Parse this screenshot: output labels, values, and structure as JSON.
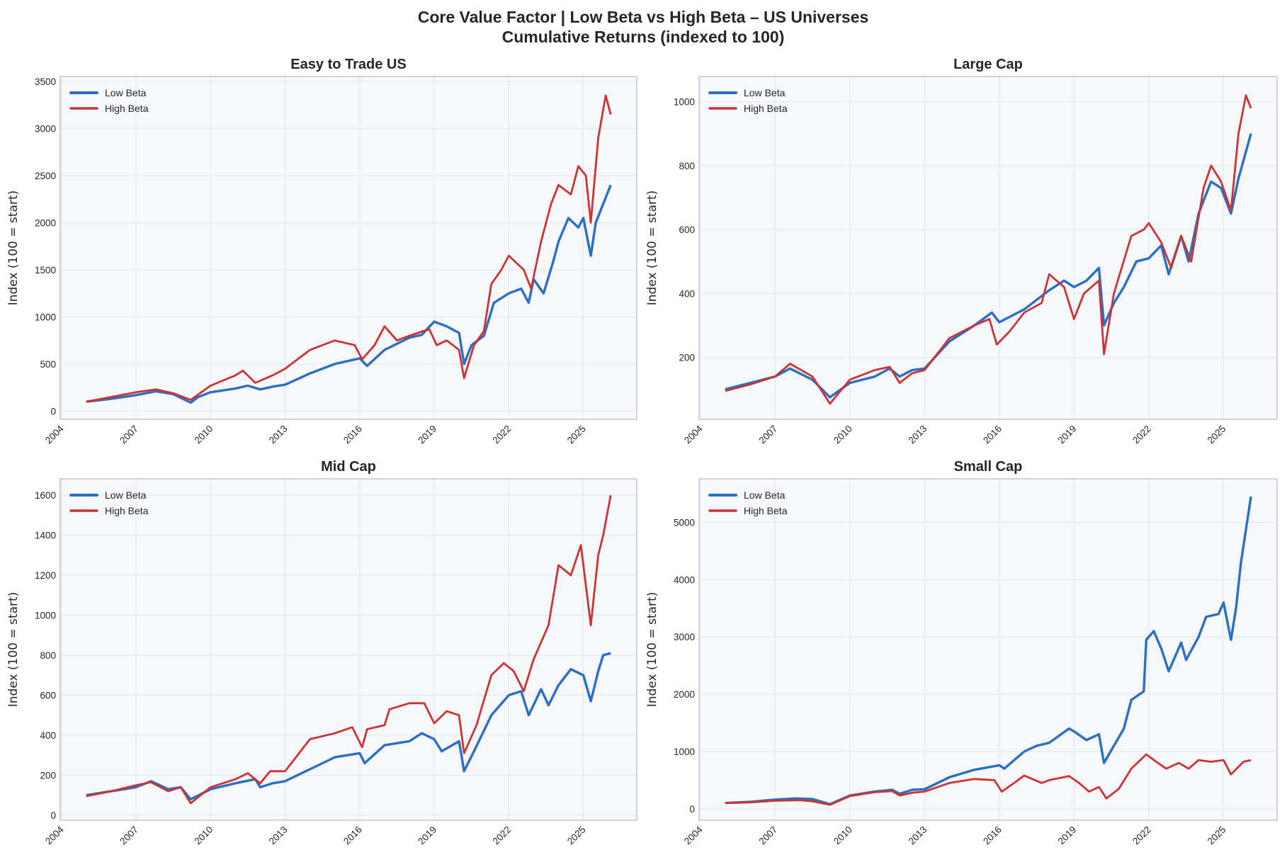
{
  "title_line1": "Core Value Factor  |  Low Beta vs High Beta  –  US Universes",
  "title_line2": "Cumulative Returns (indexed to 100)",
  "colors": {
    "low_beta": "#2a6ec6",
    "high_beta": "#cc3333",
    "axes_bg": "#f6f8fc",
    "grid": "#e3e6ee",
    "spine": "#c9c9c9"
  },
  "chart_data": [
    {
      "type": "line",
      "title": "Easy to Trade US",
      "xlabel": "",
      "ylabel": "Index (100 = start)",
      "xlim": [
        2003.95,
        2027.15
      ],
      "ylim": [
        -87,
        3552
      ],
      "xticks": [
        2004,
        2007,
        2010,
        2013,
        2016,
        2019,
        2022,
        2025
      ],
      "yticks": [
        0,
        500,
        1000,
        1500,
        2000,
        2500,
        3000,
        3500
      ],
      "grid": true,
      "legend": "top-left",
      "series": [
        {
          "name": "Low Beta",
          "x": [
            2005,
            2006,
            2007,
            2007.8,
            2008.5,
            2009.2,
            2009.5,
            2010,
            2011,
            2011.5,
            2012,
            2012.5,
            2013,
            2014,
            2015,
            2016,
            2016.3,
            2017,
            2018,
            2018.5,
            2019,
            2019.5,
            2020,
            2020.2,
            2020.5,
            2021,
            2021.4,
            2022,
            2022.5,
            2022.8,
            2023,
            2023.4,
            2023.8,
            2024,
            2024.4,
            2024.8,
            2025,
            2025.3,
            2025.5,
            2026.1
          ],
          "y": [
            100,
            130,
            170,
            210,
            180,
            90,
            150,
            200,
            240,
            270,
            230,
            260,
            280,
            400,
            500,
            560,
            480,
            650,
            780,
            810,
            950,
            900,
            830,
            500,
            700,
            800,
            1150,
            1250,
            1300,
            1150,
            1400,
            1250,
            1600,
            1800,
            2050,
            1950,
            2050,
            1650,
            2000,
            2400
          ]
        },
        {
          "name": "High Beta",
          "x": [
            2005,
            2006,
            2007,
            2007.8,
            2008.5,
            2009.2,
            2010,
            2011,
            2011.3,
            2011.8,
            2012.5,
            2013,
            2014,
            2015,
            2015.8,
            2016.1,
            2016.6,
            2017,
            2017.5,
            2018,
            2018.8,
            2019.1,
            2019.5,
            2020,
            2020.2,
            2020.6,
            2021,
            2021.3,
            2021.7,
            2022,
            2022.6,
            2022.9,
            2023.3,
            2023.7,
            2024,
            2024.5,
            2024.8,
            2025.1,
            2025.3,
            2025.6,
            2025.9,
            2026.1
          ],
          "y": [
            100,
            150,
            200,
            230,
            190,
            120,
            270,
            380,
            430,
            300,
            380,
            450,
            650,
            750,
            700,
            550,
            700,
            900,
            750,
            800,
            870,
            700,
            750,
            650,
            350,
            700,
            850,
            1350,
            1500,
            1650,
            1500,
            1300,
            1800,
            2200,
            2400,
            2300,
            2600,
            2500,
            2000,
            2900,
            3350,
            3150
          ]
        }
      ]
    },
    {
      "type": "line",
      "title": "Large Cap",
      "xlabel": "",
      "ylabel": "Index (100 = start)",
      "xlim": [
        2003.95,
        2027.15
      ],
      "ylim": [
        6,
        1079
      ],
      "xticks": [
        2004,
        2007,
        2010,
        2013,
        2016,
        2019,
        2022,
        2025
      ],
      "yticks": [
        200,
        400,
        600,
        800,
        1000
      ],
      "grid": true,
      "legend": "top-left",
      "series": [
        {
          "name": "Low Beta",
          "x": [
            2005,
            2006,
            2007,
            2007.6,
            2008.5,
            2009.2,
            2010,
            2011,
            2011.6,
            2012,
            2012.5,
            2013,
            2014,
            2015,
            2015.7,
            2016,
            2016.5,
            2017,
            2018,
            2018.6,
            2019,
            2019.5,
            2020,
            2020.2,
            2020.6,
            2021,
            2021.5,
            2022,
            2022.5,
            2022.8,
            2023.3,
            2023.6,
            2024,
            2024.5,
            2024.9,
            2025.3,
            2025.6,
            2026.1
          ],
          "y": [
            100,
            120,
            140,
            165,
            130,
            75,
            120,
            140,
            165,
            140,
            160,
            165,
            250,
            300,
            340,
            310,
            330,
            350,
            410,
            440,
            420,
            440,
            480,
            300,
            370,
            420,
            500,
            510,
            550,
            460,
            580,
            500,
            650,
            750,
            730,
            650,
            760,
            900
          ]
        },
        {
          "name": "High Beta",
          "x": [
            2005,
            2006,
            2007,
            2007.6,
            2008.5,
            2009.2,
            2010,
            2011,
            2011.6,
            2012,
            2012.5,
            2013,
            2014,
            2015,
            2015.6,
            2015.9,
            2016.4,
            2017,
            2017.7,
            2018,
            2018.6,
            2019,
            2019.4,
            2020,
            2020.2,
            2020.6,
            2021.3,
            2021.8,
            2022,
            2022.5,
            2022.9,
            2023.3,
            2023.7,
            2024.2,
            2024.5,
            2024.9,
            2025.3,
            2025.6,
            2025.9,
            2026.1
          ],
          "y": [
            95,
            115,
            140,
            180,
            140,
            55,
            130,
            160,
            170,
            120,
            150,
            160,
            260,
            300,
            320,
            240,
            280,
            340,
            370,
            460,
            420,
            320,
            400,
            440,
            210,
            400,
            580,
            600,
            620,
            560,
            480,
            580,
            500,
            730,
            800,
            750,
            660,
            900,
            1020,
            980
          ]
        }
      ]
    },
    {
      "type": "line",
      "title": "Mid Cap",
      "xlabel": "",
      "ylabel": "Index (100 = start)",
      "xlim": [
        2003.95,
        2027.15
      ],
      "ylim": [
        -25,
        1682
      ],
      "xticks": [
        2004,
        2007,
        2010,
        2013,
        2016,
        2019,
        2022,
        2025
      ],
      "yticks": [
        0,
        200,
        400,
        600,
        800,
        1000,
        1200,
        1400,
        1600
      ],
      "grid": true,
      "legend": "top-left",
      "series": [
        {
          "name": "Low Beta",
          "x": [
            2005,
            2006,
            2007,
            2007.6,
            2008.3,
            2008.8,
            2009.2,
            2010,
            2011,
            2011.8,
            2012,
            2012.5,
            2013,
            2014,
            2015,
            2016,
            2016.2,
            2017,
            2018,
            2018.5,
            2019,
            2019.3,
            2020,
            2020.2,
            2020.6,
            2021.3,
            2022,
            2022.5,
            2022.8,
            2023.3,
            2023.6,
            2024,
            2024.5,
            2025,
            2025.3,
            2025.6,
            2025.8,
            2026.1
          ],
          "y": [
            100,
            120,
            140,
            170,
            130,
            140,
            80,
            130,
            160,
            180,
            140,
            160,
            170,
            230,
            290,
            310,
            260,
            350,
            370,
            410,
            380,
            320,
            370,
            220,
            320,
            500,
            600,
            620,
            500,
            630,
            550,
            650,
            730,
            700,
            570,
            720,
            800,
            810
          ]
        },
        {
          "name": "High Beta",
          "x": [
            2005,
            2006,
            2007,
            2007.6,
            2008.3,
            2008.8,
            2009.2,
            2010,
            2011,
            2011.5,
            2012,
            2012.4,
            2013,
            2014,
            2015,
            2015.7,
            2016.1,
            2016.3,
            2017,
            2017.2,
            2018,
            2018.6,
            2019,
            2019.5,
            2020,
            2020.2,
            2020.7,
            2021.3,
            2021.8,
            2022.2,
            2022.6,
            2023,
            2023.6,
            2024,
            2024.5,
            2024.9,
            2025.1,
            2025.3,
            2025.6,
            2025.8,
            2026.1
          ],
          "y": [
            95,
            120,
            150,
            165,
            120,
            140,
            60,
            140,
            180,
            210,
            160,
            220,
            220,
            380,
            410,
            440,
            340,
            430,
            450,
            530,
            560,
            560,
            460,
            520,
            500,
            310,
            450,
            700,
            760,
            720,
            620,
            780,
            950,
            1250,
            1200,
            1350,
            1150,
            950,
            1300,
            1400,
            1600
          ]
        }
      ]
    },
    {
      "type": "line",
      "title": "Small Cap",
      "xlabel": "",
      "ylabel": "Index (100 = start)",
      "xlim": [
        2003.95,
        2027.15
      ],
      "ylim": [
        -200,
        5760
      ],
      "xticks": [
        2004,
        2007,
        2010,
        2013,
        2016,
        2019,
        2022,
        2025
      ],
      "yticks": [
        0,
        1000,
        2000,
        3000,
        4000,
        5000
      ],
      "grid": true,
      "legend": "top-left",
      "series": [
        {
          "name": "Low Beta",
          "x": [
            2005,
            2006,
            2007,
            2007.8,
            2008.5,
            2009.2,
            2010,
            2011,
            2011.7,
            2012,
            2012.5,
            2013,
            2014,
            2015,
            2016,
            2016.2,
            2017,
            2017.5,
            2018,
            2018.8,
            2019,
            2019.5,
            2020,
            2020.2,
            2020.6,
            2021,
            2021.3,
            2021.8,
            2021.9,
            2022.2,
            2022.5,
            2022.8,
            2023.3,
            2023.5,
            2024,
            2024.3,
            2024.8,
            2025,
            2025.3,
            2025.5,
            2025.7,
            2026.1
          ],
          "y": [
            100,
            120,
            160,
            180,
            170,
            80,
            230,
            300,
            330,
            260,
            330,
            340,
            550,
            680,
            760,
            700,
            1000,
            1100,
            1150,
            1400,
            1350,
            1200,
            1300,
            800,
            1100,
            1400,
            1900,
            2050,
            2950,
            3100,
            2800,
            2400,
            2900,
            2600,
            3000,
            3350,
            3400,
            3600,
            2950,
            3500,
            4300,
            5450
          ]
        },
        {
          "name": "High Beta",
          "x": [
            2005,
            2006,
            2007,
            2008,
            2008.5,
            2009.2,
            2010,
            2011,
            2011.7,
            2012,
            2012.5,
            2013,
            2014,
            2015,
            2015.8,
            2016.1,
            2016.6,
            2017,
            2017.7,
            2018,
            2018.8,
            2019.2,
            2019.6,
            2020,
            2020.3,
            2020.8,
            2021.3,
            2021.9,
            2022.3,
            2022.7,
            2023.2,
            2023.6,
            2024,
            2024.5,
            2025,
            2025.3,
            2025.8,
            2026.1
          ],
          "y": [
            100,
            110,
            140,
            150,
            130,
            70,
            220,
            290,
            310,
            230,
            280,
            300,
            450,
            520,
            500,
            300,
            450,
            580,
            450,
            500,
            570,
            450,
            300,
            380,
            180,
            350,
            700,
            950,
            820,
            700,
            800,
            700,
            850,
            820,
            850,
            600,
            820,
            850
          ]
        }
      ]
    }
  ]
}
